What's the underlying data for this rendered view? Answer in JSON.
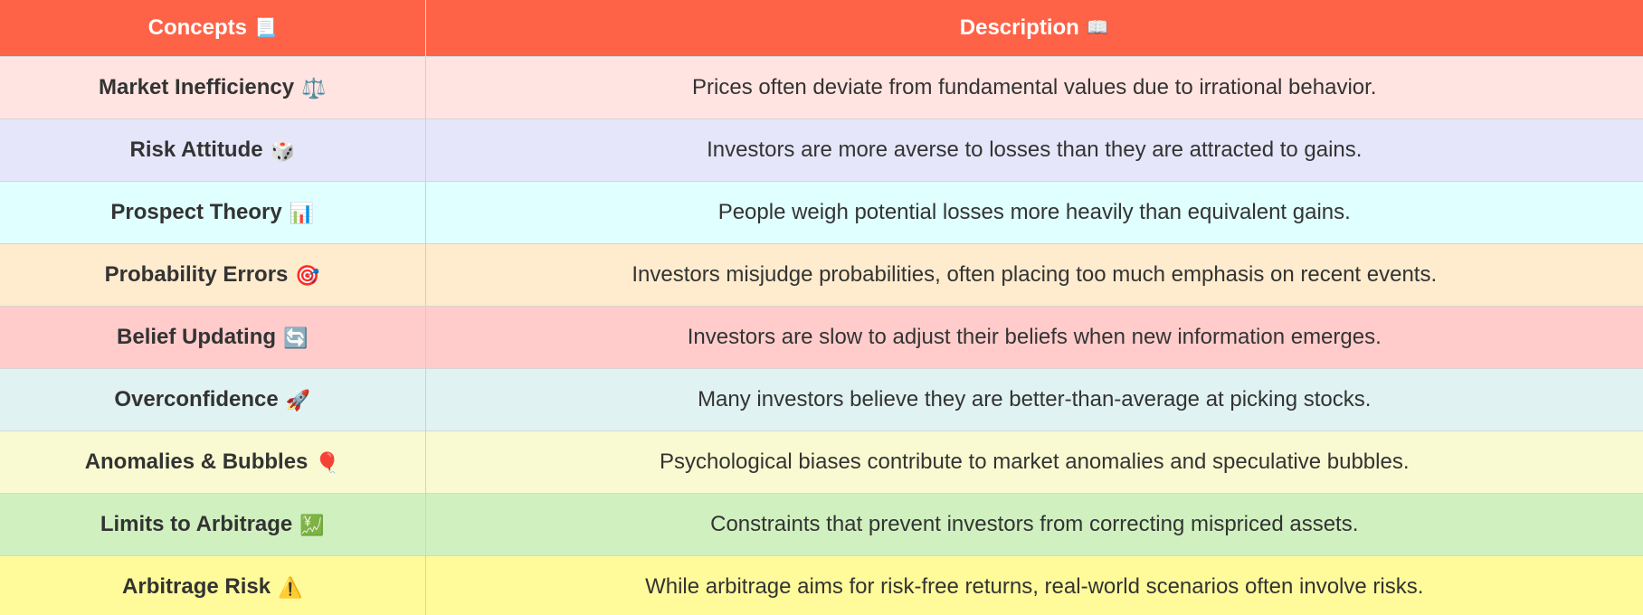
{
  "header": {
    "col1_label": "Concepts",
    "col1_icon": "📃",
    "col2_label": "Description",
    "col2_icon": "📖"
  },
  "rows": [
    {
      "concept": "Market Inefficiency",
      "icon": "⚖️",
      "description": "Prices often deviate from fundamental values due to irrational behavior.",
      "color": "#ffe4e1"
    },
    {
      "concept": "Risk Attitude",
      "icon": "🎲",
      "description": "Investors are more averse to losses than they are attracted to gains.",
      "color": "#e6e6fa"
    },
    {
      "concept": "Prospect Theory",
      "icon": "📊",
      "description": "People weigh potential losses more heavily than equivalent gains.",
      "color": "#e0ffff"
    },
    {
      "concept": "Probability Errors",
      "icon": "🎯",
      "description": "Investors misjudge probabilities, often placing too much emphasis on recent events.",
      "color": "#ffebcd"
    },
    {
      "concept": "Belief Updating",
      "icon": "🔄",
      "description": "Investors are slow to adjust their beliefs when new information emerges.",
      "color": "#ffcccb"
    },
    {
      "concept": "Overconfidence",
      "icon": "🚀",
      "description": "Many investors believe they are better-than-average at picking stocks.",
      "color": "#e0f2f1"
    },
    {
      "concept": "Anomalies & Bubbles",
      "icon": "🎈",
      "description": "Psychological biases contribute to market anomalies and speculative bubbles.",
      "color": "#fafad2"
    },
    {
      "concept": "Limits to Arbitrage",
      "icon": "💹",
      "description": "Constraints that prevent investors from correcting mispriced assets.",
      "color": "#d0f0c0"
    },
    {
      "concept": "Arbitrage Risk",
      "icon": "⚠️",
      "description": "While arbitrage aims for risk-free returns, real-world scenarios often involve risks.",
      "color": "#fffa9a"
    }
  ]
}
